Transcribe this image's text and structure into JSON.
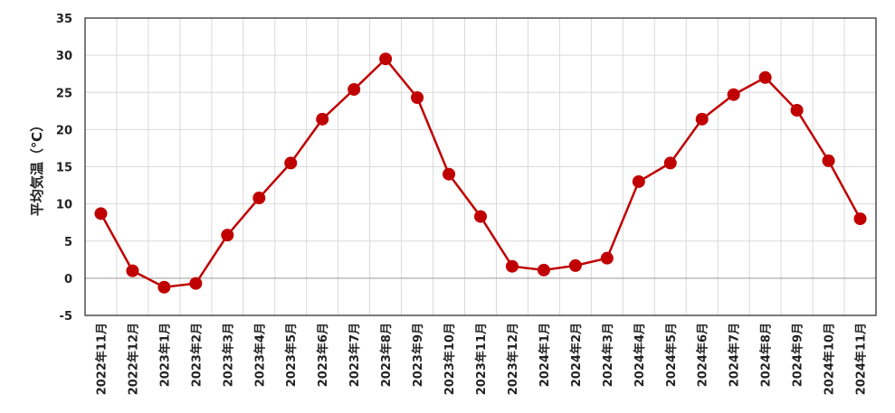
{
  "chart_data": {
    "type": "line",
    "y_label": "平均気温（℃）",
    "categories": [
      "2022年11月",
      "2022年12月",
      "2023年1月",
      "2023年2月",
      "2023年3月",
      "2023年4月",
      "2023年5月",
      "2023年6月",
      "2023年7月",
      "2023年8月",
      "2023年9月",
      "2023年10月",
      "2023年11月",
      "2023年12月",
      "2024年1月",
      "2024年2月",
      "2024年3月",
      "2024年4月",
      "2024年5月",
      "2024年6月",
      "2024年7月",
      "2024年8月",
      "2024年9月",
      "2024年10月",
      "2024年11月"
    ],
    "values": [
      8.7,
      1.0,
      -1.2,
      -0.7,
      5.8,
      10.8,
      15.5,
      21.4,
      25.4,
      29.5,
      24.3,
      14.0,
      8.3,
      1.6,
      1.1,
      1.7,
      2.7,
      13.0,
      15.5,
      21.4,
      24.7,
      27.0,
      22.6,
      15.8,
      8.0
    ],
    "color": "#c00000",
    "ylim": [
      -5,
      35
    ],
    "yticks": [
      -5,
      0,
      5,
      10,
      15,
      20,
      25,
      30,
      35
    ],
    "grid": true
  }
}
